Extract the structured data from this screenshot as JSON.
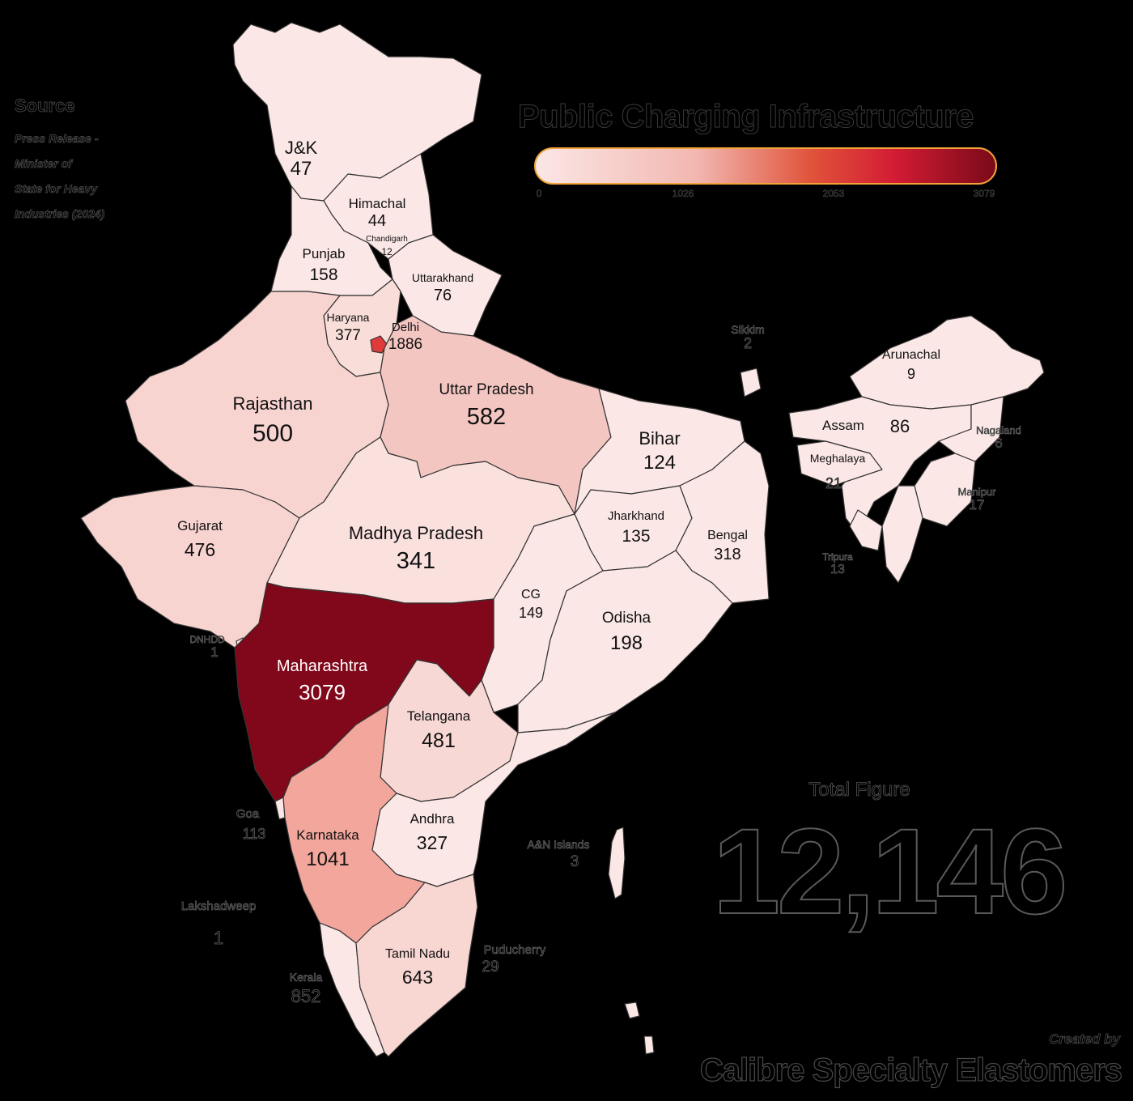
{
  "title": "Public Charging Infrastructure",
  "legend": {
    "ticks": [
      "0",
      "1026",
      "2053",
      "3079"
    ],
    "colors": [
      "#fbe7e6",
      "#f2b7b0",
      "#e0533a",
      "#d31c34",
      "#7a0a18"
    ]
  },
  "source": {
    "heading": "Source",
    "lines": [
      "Press Release -",
      "Minister of",
      "State for Heavy",
      "Industries (2024)"
    ]
  },
  "total": {
    "label": "Total Figure",
    "value": "12,146"
  },
  "credit": {
    "by": "Created by",
    "org": "Calibre Specialty Elastomers"
  },
  "states": {
    "jk": {
      "name": "J&K",
      "value": "47"
    },
    "himachal": {
      "name": "Himachal",
      "value": "44"
    },
    "chandigarh": {
      "name": "Chandigarh",
      "value": "12"
    },
    "punjab": {
      "name": "Punjab",
      "value": "158"
    },
    "uttarakhand": {
      "name": "Uttarakhand",
      "value": "76"
    },
    "haryana": {
      "name": "Haryana",
      "value": "377"
    },
    "delhi": {
      "name": "Delhi",
      "value": "1886"
    },
    "rajasthan": {
      "name": "Rajasthan",
      "value": "500"
    },
    "up": {
      "name": "Uttar Pradesh",
      "value": "582"
    },
    "bihar": {
      "name": "Bihar",
      "value": "124"
    },
    "sikkim": {
      "name": "Sikkim",
      "value": "2"
    },
    "arunachal": {
      "name": "Arunachal",
      "value": "9"
    },
    "assam": {
      "name": "Assam",
      "value": "86"
    },
    "nagaland": {
      "name": "Nagaland",
      "value": "6"
    },
    "meghalaya": {
      "name": "Meghalaya",
      "value": "21"
    },
    "manipur": {
      "name": "Manipur",
      "value": "17"
    },
    "tripura": {
      "name": "Tripura",
      "value": "13"
    },
    "gujarat": {
      "name": "Gujarat",
      "value": "476"
    },
    "mp": {
      "name": "Madhya Pradesh",
      "value": "341"
    },
    "jharkhand": {
      "name": "Jharkhand",
      "value": "135"
    },
    "bengal": {
      "name": "Bengal",
      "value": "318"
    },
    "cg": {
      "name": "CG",
      "value": "149"
    },
    "odisha": {
      "name": "Odisha",
      "value": "198"
    },
    "dnhdd": {
      "name": "DNHDD",
      "value": "1"
    },
    "maharashtra": {
      "name": "Maharashtra",
      "value": "3079"
    },
    "telangana": {
      "name": "Telangana",
      "value": "481"
    },
    "goa": {
      "name": "Goa",
      "value": "113"
    },
    "karnataka": {
      "name": "Karnataka",
      "value": "1041"
    },
    "andhra": {
      "name": "Andhra",
      "value": "327"
    },
    "an": {
      "name": "A&N Islands",
      "value": "3"
    },
    "lakshadweep": {
      "name": "Lakshadweep",
      "value": "1"
    },
    "tn": {
      "name": "Tamil Nadu",
      "value": "643"
    },
    "puducherry": {
      "name": "Puducherry",
      "value": "29"
    },
    "kerala": {
      "name": "Kerala",
      "value": "852"
    }
  }
}
